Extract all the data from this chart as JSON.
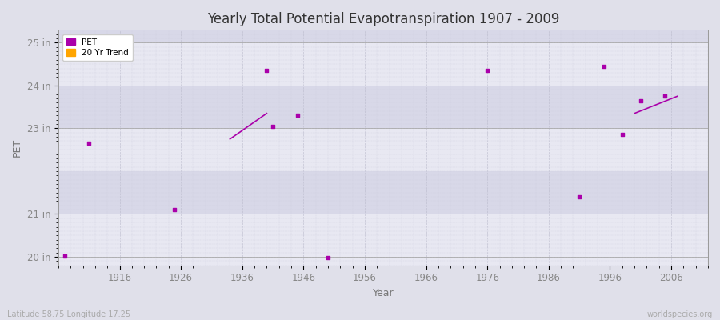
{
  "title": "Yearly Total Potential Evapotranspiration 1907 - 2009",
  "xlabel": "Year",
  "ylabel": "PET",
  "subtitle_left": "Latitude 58.75 Longitude 17.25",
  "subtitle_right": "worldspecies.org",
  "background_color": "#e0e0ea",
  "plot_bg_color": "#e8e8f2",
  "band_color_light": "#e8e8f2",
  "band_color_dark": "#d8d8e8",
  "ylim": [
    19.8,
    25.3
  ],
  "xlim": [
    1906,
    2012
  ],
  "ytick_positions": [
    20,
    21,
    23,
    24,
    25
  ],
  "ytick_labels": [
    "20 in",
    "21 in",
    "23 in",
    "24 in",
    "25 in"
  ],
  "xticks": [
    1916,
    1926,
    1936,
    1946,
    1956,
    1966,
    1976,
    1986,
    1996,
    2006
  ],
  "pet_color": "#aa00aa",
  "trend_color": "#aa00aa",
  "legend_pet_color": "#aa00aa",
  "legend_trend_color": "#FFA500",
  "pet_points": [
    [
      1907,
      20.02
    ],
    [
      1911,
      22.65
    ],
    [
      1925,
      21.1
    ],
    [
      1940,
      24.35
    ],
    [
      1941,
      23.05
    ],
    [
      1945,
      23.3
    ],
    [
      1950,
      19.98
    ],
    [
      1976,
      24.35
    ],
    [
      1991,
      21.4
    ],
    [
      1995,
      24.45
    ],
    [
      1998,
      22.85
    ],
    [
      2001,
      23.65
    ],
    [
      2005,
      23.75
    ]
  ],
  "trend_lines": [
    {
      "x": [
        1934,
        1940
      ],
      "y": [
        22.75,
        23.35
      ]
    },
    {
      "x": [
        2000,
        2007
      ],
      "y": [
        23.35,
        23.75
      ]
    }
  ],
  "band_ranges": [
    [
      20.0,
      21.0
    ],
    [
      21.0,
      22.0
    ],
    [
      22.0,
      23.0
    ],
    [
      23.0,
      24.0
    ],
    [
      24.0,
      25.0
    ],
    [
      25.0,
      25.3
    ]
  ],
  "legend_entries": [
    {
      "label": "PET",
      "color": "#aa00aa"
    },
    {
      "label": "20 Yr Trend",
      "color": "#FFA500"
    }
  ]
}
